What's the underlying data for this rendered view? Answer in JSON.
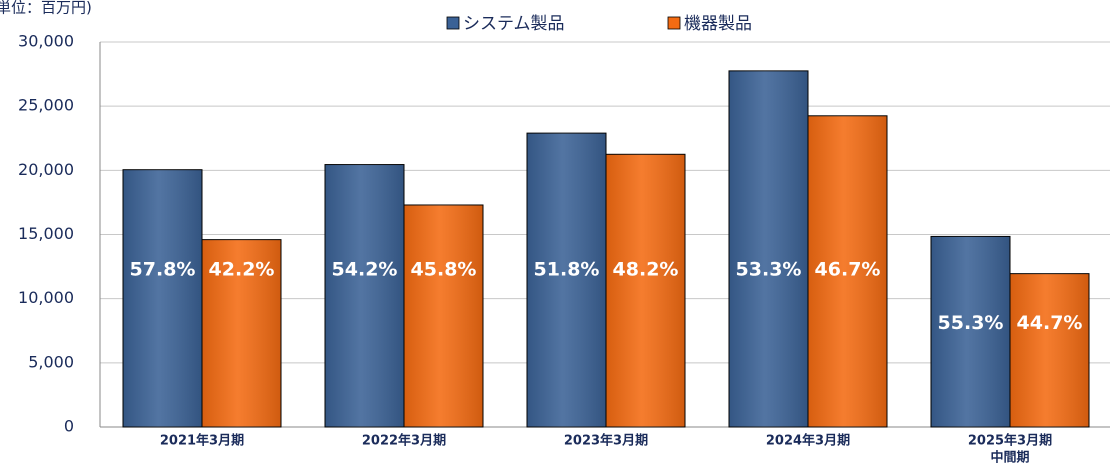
{
  "chart_data": {
    "type": "bar",
    "unit_label": "単位：百万円)",
    "categories": [
      [
        "2021年3月期"
      ],
      [
        "2022年3月期"
      ],
      [
        "2023年3月期"
      ],
      [
        "2024年3月期"
      ],
      [
        "2025年3月期",
        "中間期"
      ]
    ],
    "series": [
      {
        "name": "システム製品",
        "color": "#3b6296",
        "values": [
          20050,
          20450,
          22900,
          27750,
          14850
        ],
        "percent_labels": [
          "57.8%",
          "54.2%",
          "51.8%",
          "53.3%",
          "55.3%"
        ]
      },
      {
        "name": "機器製品",
        "color": "#f46b12",
        "values": [
          14600,
          17300,
          21250,
          24250,
          11950
        ],
        "percent_labels": [
          "42.2%",
          "45.8%",
          "48.2%",
          "46.7%",
          "44.7%"
        ]
      }
    ],
    "ylim": [
      0,
      30000
    ],
    "yticks": [
      0,
      {
        "value": 5000,
        "label": "5,000"
      },
      {
        "value": 10000,
        "label": "10,000"
      },
      {
        "value": 15000,
        "label": "15,000"
      },
      {
        "value": 20000,
        "label": "20,000"
      },
      {
        "value": 25000,
        "label": "25,000"
      },
      {
        "value": 30000,
        "label": "30,000"
      }
    ],
    "grid": true,
    "legend": "top"
  }
}
